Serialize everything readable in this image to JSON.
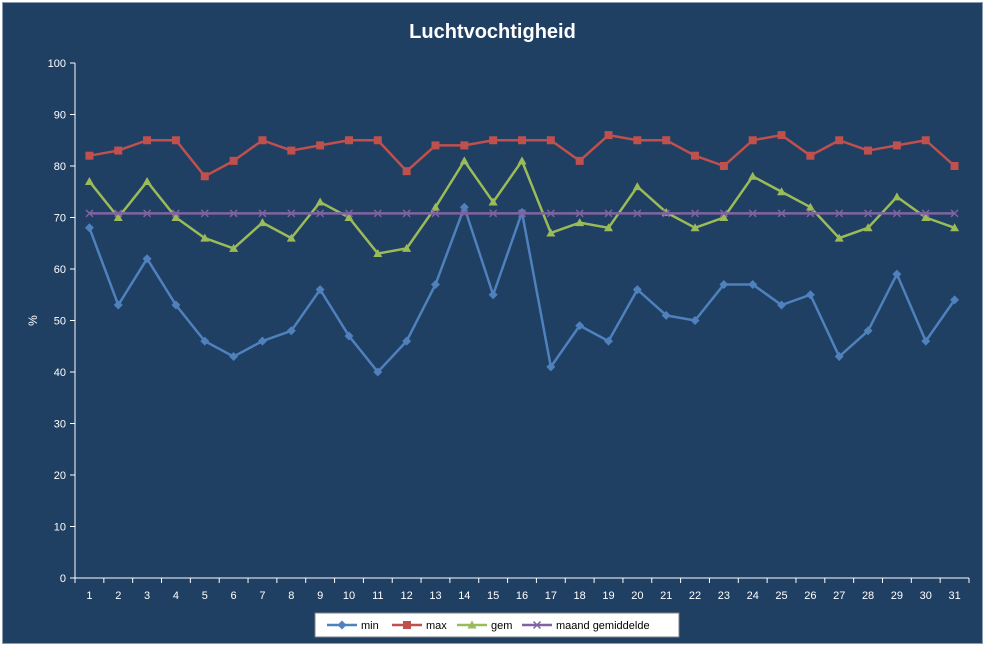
{
  "chart_data": {
    "type": "line",
    "title": "Luchtvochtigheid",
    "xlabel": "",
    "ylabel": "%",
    "ylim": [
      0,
      100
    ],
    "yticks": [
      0,
      10,
      20,
      30,
      40,
      50,
      60,
      70,
      80,
      90,
      100
    ],
    "x": [
      1,
      2,
      3,
      4,
      5,
      6,
      7,
      8,
      9,
      10,
      11,
      12,
      13,
      14,
      15,
      16,
      17,
      18,
      19,
      20,
      21,
      22,
      23,
      24,
      25,
      26,
      27,
      28,
      29,
      30,
      31
    ],
    "grid": false,
    "legend": "bottom",
    "series": [
      {
        "name": "min",
        "color": "#4f81bd",
        "marker": "diamond",
        "values": [
          68,
          53,
          62,
          53,
          46,
          43,
          46,
          48,
          56,
          47,
          40,
          46,
          57,
          72,
          55,
          71,
          41,
          49,
          46,
          56,
          51,
          50,
          57,
          57,
          53,
          55,
          43,
          48,
          59,
          46,
          54
        ]
      },
      {
        "name": "max",
        "color": "#c0504d",
        "marker": "square",
        "values": [
          82,
          83,
          85,
          85,
          78,
          81,
          85,
          83,
          84,
          85,
          85,
          79,
          84,
          84,
          85,
          85,
          85,
          81,
          86,
          85,
          85,
          82,
          80,
          85,
          86,
          82,
          85,
          83,
          84,
          85,
          80
        ]
      },
      {
        "name": "gem",
        "color": "#9bbb59",
        "marker": "triangle",
        "values": [
          77,
          70,
          77,
          70,
          66,
          64,
          69,
          66,
          73,
          70,
          63,
          64,
          72,
          81,
          73,
          81,
          67,
          69,
          68,
          76,
          71,
          68,
          70,
          78,
          75,
          72,
          66,
          68,
          74,
          70,
          68
        ]
      },
      {
        "name": "maand gemiddelde",
        "color": "#8064a2",
        "marker": "x",
        "values": [
          70.8,
          70.8,
          70.8,
          70.8,
          70.8,
          70.8,
          70.8,
          70.8,
          70.8,
          70.8,
          70.8,
          70.8,
          70.8,
          70.8,
          70.8,
          70.8,
          70.8,
          70.8,
          70.8,
          70.8,
          70.8,
          70.8,
          70.8,
          70.8,
          70.8,
          70.8,
          70.8,
          70.8,
          70.8,
          70.8,
          70.8
        ]
      }
    ]
  },
  "colors": {
    "background": "#1f3f63",
    "axis": "#ffffff",
    "legend_background": "#ffffff"
  }
}
